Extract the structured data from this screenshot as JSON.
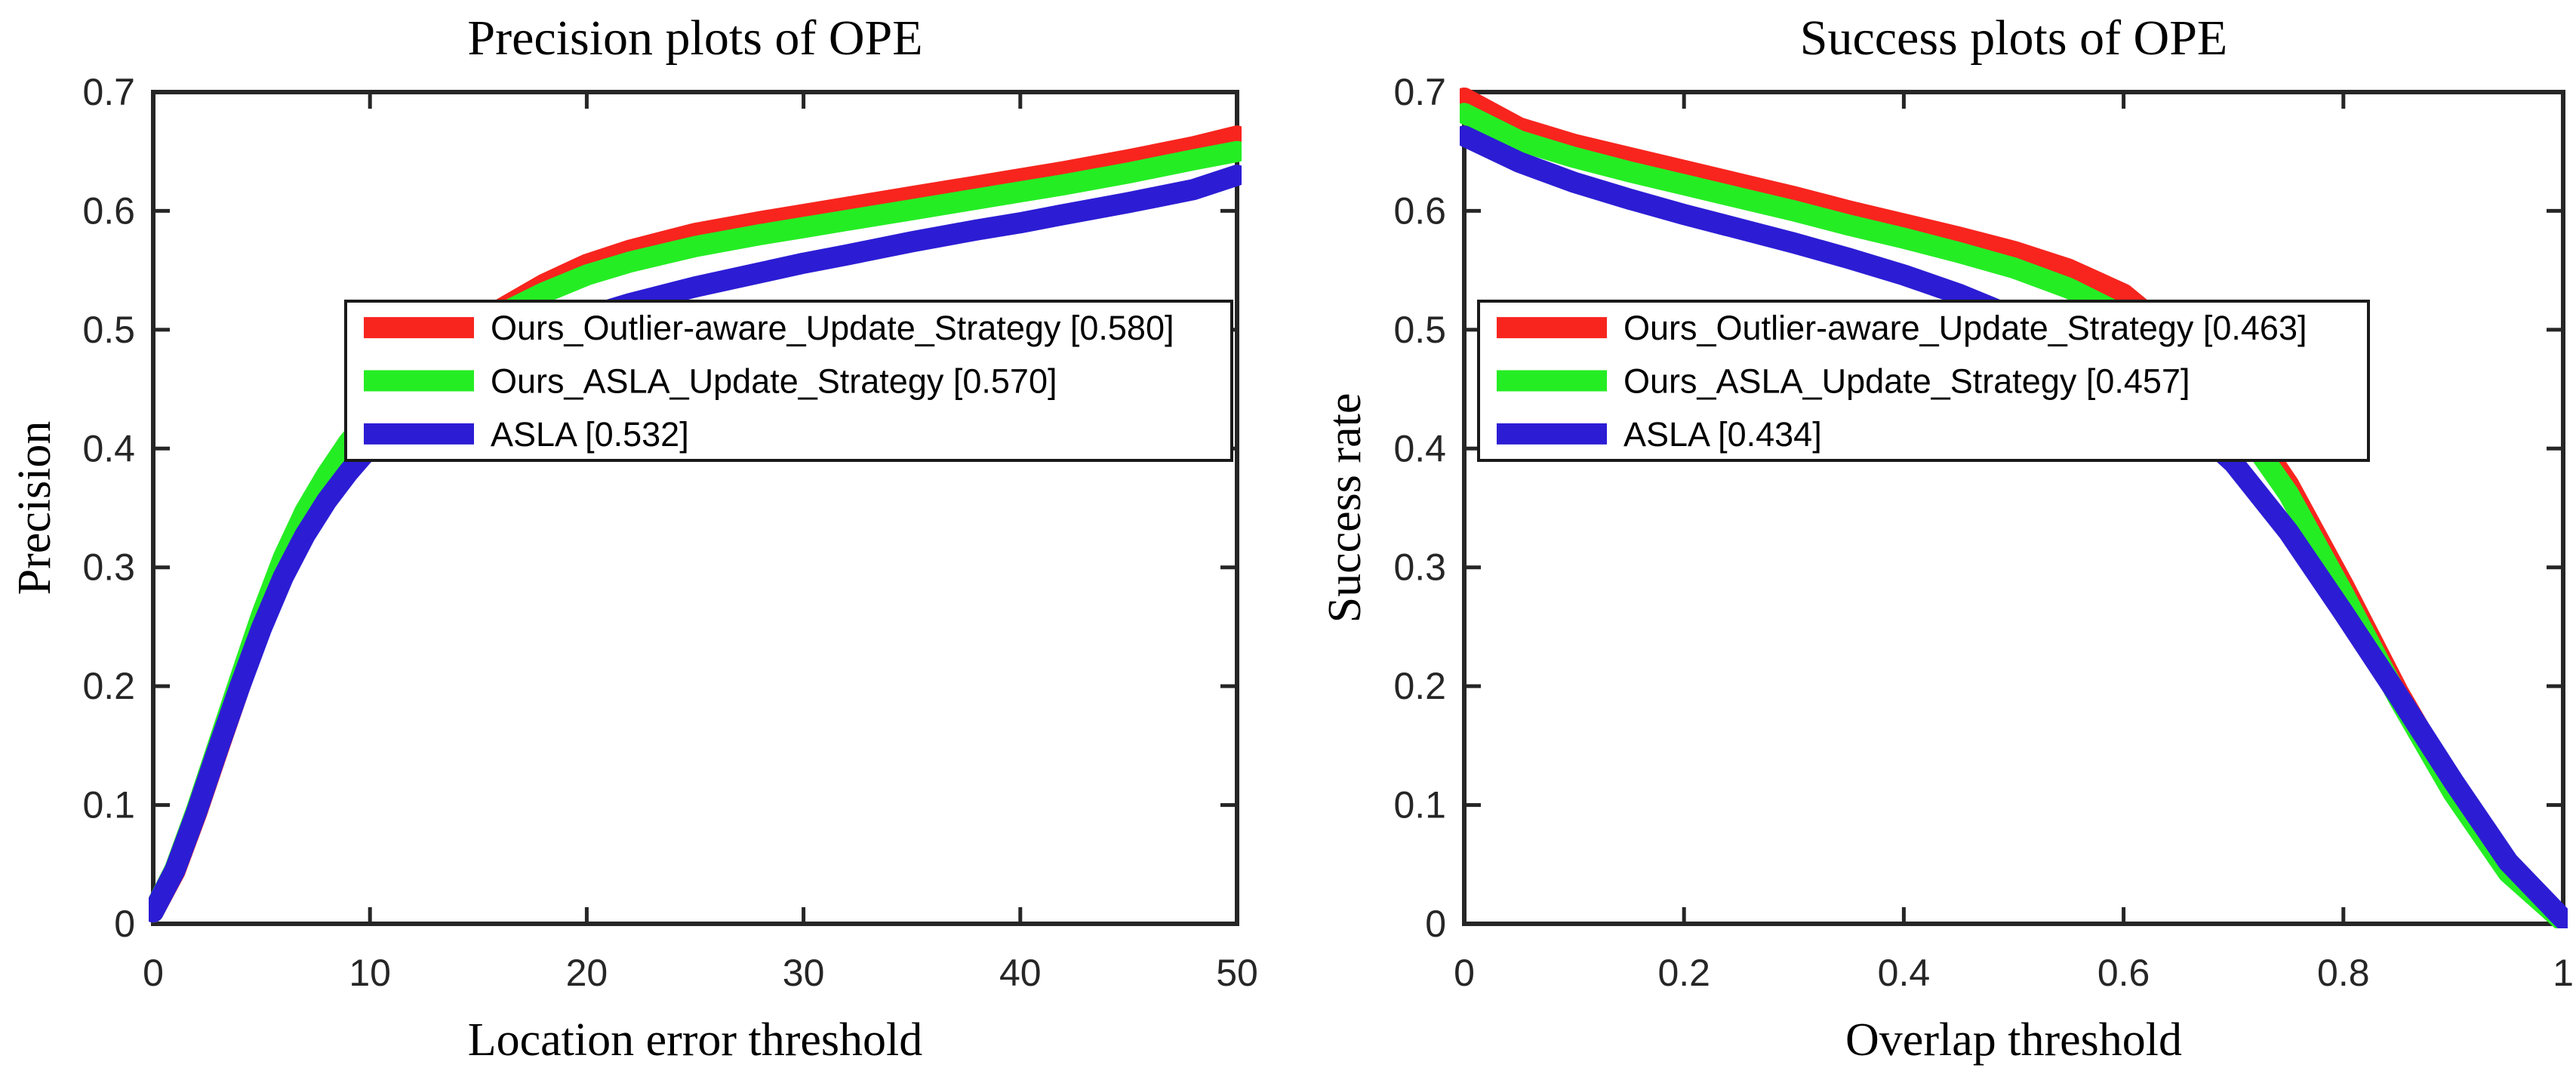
{
  "page": {
    "background": "#ffffff"
  },
  "colors": {
    "axis": "#262626",
    "legend_border": "#1a1a1a",
    "legend_background": "#ffffff",
    "series_red": "#f7251e",
    "series_green": "#25ed24",
    "series_blue": "#2c1dd4"
  },
  "chart_data": [
    {
      "id": "precision-plot",
      "type": "line",
      "title": "Precision plots of OPE",
      "xlabel": "Location error threshold",
      "ylabel": "Precision",
      "xlim": [
        0,
        50
      ],
      "ylim": [
        0,
        0.7
      ],
      "grid": false,
      "legend_position": "inside-middle-right",
      "xticks": {
        "values": [
          0,
          10,
          20,
          30,
          40,
          50
        ],
        "labels": [
          "0",
          "10",
          "20",
          "30",
          "40",
          "50"
        ]
      },
      "yticks": {
        "values": [
          0,
          0.1,
          0.2,
          0.3,
          0.4,
          0.5,
          0.6,
          0.7
        ],
        "labels": [
          "0",
          "0.1",
          "0.2",
          "0.3",
          "0.4",
          "0.5",
          "0.6",
          "0.7"
        ]
      },
      "series": [
        {
          "key": "ours-outlier-aware-update-strategy",
          "label": "Ours_Outlier-aware_Update_Strategy [0.580]",
          "score": 0.58,
          "color": "#f7251e",
          "x": [
            0,
            1,
            2,
            3,
            4,
            5,
            6,
            7,
            8,
            9,
            10,
            11,
            12,
            13,
            14,
            15,
            16,
            18,
            20,
            22,
            25,
            28,
            30,
            32,
            35,
            38,
            40,
            42,
            45,
            48,
            50
          ],
          "y": [
            0.01,
            0.044,
            0.093,
            0.147,
            0.2,
            0.252,
            0.3,
            0.34,
            0.372,
            0.4,
            0.422,
            0.441,
            0.458,
            0.474,
            0.49,
            0.504,
            0.517,
            0.538,
            0.555,
            0.567,
            0.581,
            0.591,
            0.597,
            0.603,
            0.612,
            0.621,
            0.627,
            0.633,
            0.643,
            0.654,
            0.663
          ]
        },
        {
          "key": "ours-asla-update-strategy",
          "label": "Ours_ASLA_Update_Strategy [0.570]",
          "score": 0.57,
          "color": "#25ed24",
          "x": [
            0,
            1,
            2,
            3,
            4,
            5,
            6,
            7,
            8,
            9,
            10,
            11,
            12,
            13,
            14,
            15,
            16,
            18,
            20,
            22,
            25,
            28,
            30,
            32,
            35,
            38,
            40,
            42,
            45,
            48,
            50
          ],
          "y": [
            0.01,
            0.046,
            0.096,
            0.151,
            0.206,
            0.26,
            0.308,
            0.347,
            0.378,
            0.405,
            0.427,
            0.446,
            0.462,
            0.477,
            0.49,
            0.502,
            0.513,
            0.531,
            0.546,
            0.557,
            0.57,
            0.58,
            0.586,
            0.592,
            0.601,
            0.61,
            0.616,
            0.622,
            0.632,
            0.643,
            0.65
          ]
        },
        {
          "key": "asla",
          "label": "ASLA [0.532]",
          "score": 0.532,
          "color": "#2c1dd4",
          "x": [
            0,
            1,
            2,
            3,
            4,
            5,
            6,
            7,
            8,
            9,
            10,
            11,
            12,
            13,
            14,
            15,
            16,
            18,
            20,
            22,
            25,
            28,
            30,
            32,
            35,
            38,
            40,
            42,
            45,
            48,
            50
          ],
          "y": [
            0.01,
            0.045,
            0.094,
            0.148,
            0.2,
            0.249,
            0.292,
            0.327,
            0.356,
            0.38,
            0.401,
            0.418,
            0.434,
            0.448,
            0.46,
            0.471,
            0.481,
            0.497,
            0.511,
            0.522,
            0.536,
            0.548,
            0.556,
            0.563,
            0.574,
            0.584,
            0.59,
            0.597,
            0.607,
            0.618,
            0.63
          ]
        }
      ]
    },
    {
      "id": "success-plot",
      "type": "line",
      "title": "Success plots of OPE",
      "xlabel": "Overlap threshold",
      "ylabel": "Success rate",
      "xlim": [
        0,
        1
      ],
      "ylim": [
        0,
        0.7
      ],
      "grid": false,
      "legend_position": "inside-middle-left",
      "xticks": {
        "values": [
          0,
          0.2,
          0.4,
          0.6,
          0.8,
          1
        ],
        "labels": [
          "0",
          "0.2",
          "0.4",
          "0.6",
          "0.8",
          "1"
        ]
      },
      "yticks": {
        "values": [
          0,
          0.1,
          0.2,
          0.3,
          0.4,
          0.5,
          0.6,
          0.7
        ],
        "labels": [
          "0",
          "0.1",
          "0.2",
          "0.3",
          "0.4",
          "0.5",
          "0.6",
          "0.7"
        ]
      },
      "series": [
        {
          "key": "ours-outlier-aware-update-strategy",
          "label": "Ours_Outlier-aware_Update_Strategy [0.463]",
          "score": 0.463,
          "color": "#f7251e",
          "x": [
            0,
            0.05,
            0.1,
            0.15,
            0.2,
            0.25,
            0.3,
            0.35,
            0.4,
            0.45,
            0.5,
            0.55,
            0.6,
            0.65,
            0.7,
            0.75,
            0.8,
            0.85,
            0.9,
            0.95,
            1.0
          ],
          "y": [
            0.695,
            0.67,
            0.656,
            0.645,
            0.634,
            0.623,
            0.612,
            0.6,
            0.589,
            0.578,
            0.566,
            0.551,
            0.53,
            0.492,
            0.438,
            0.37,
            0.285,
            0.195,
            0.115,
            0.048,
            0.004
          ]
        },
        {
          "key": "ours-asla-update-strategy",
          "label": "Ours_ASLA_Update_Strategy [0.457]",
          "score": 0.457,
          "color": "#25ed24",
          "x": [
            0,
            0.05,
            0.1,
            0.15,
            0.2,
            0.25,
            0.3,
            0.35,
            0.4,
            0.45,
            0.5,
            0.55,
            0.6,
            0.65,
            0.7,
            0.75,
            0.8,
            0.85,
            0.9,
            0.95,
            1.0
          ],
          "y": [
            0.682,
            0.659,
            0.645,
            0.633,
            0.622,
            0.611,
            0.6,
            0.588,
            0.577,
            0.565,
            0.552,
            0.535,
            0.512,
            0.478,
            0.428,
            0.362,
            0.278,
            0.19,
            0.11,
            0.043,
            0.002
          ]
        },
        {
          "key": "asla",
          "label": "ASLA [0.434]",
          "score": 0.434,
          "color": "#2c1dd4",
          "x": [
            0,
            0.05,
            0.1,
            0.15,
            0.2,
            0.25,
            0.3,
            0.35,
            0.4,
            0.45,
            0.5,
            0.55,
            0.6,
            0.65,
            0.7,
            0.75,
            0.8,
            0.85,
            0.9,
            0.95,
            1.0
          ],
          "y": [
            0.663,
            0.641,
            0.624,
            0.61,
            0.597,
            0.585,
            0.573,
            0.56,
            0.546,
            0.53,
            0.511,
            0.488,
            0.462,
            0.43,
            0.388,
            0.33,
            0.262,
            0.192,
            0.12,
            0.052,
            0.004
          ]
        }
      ]
    }
  ]
}
